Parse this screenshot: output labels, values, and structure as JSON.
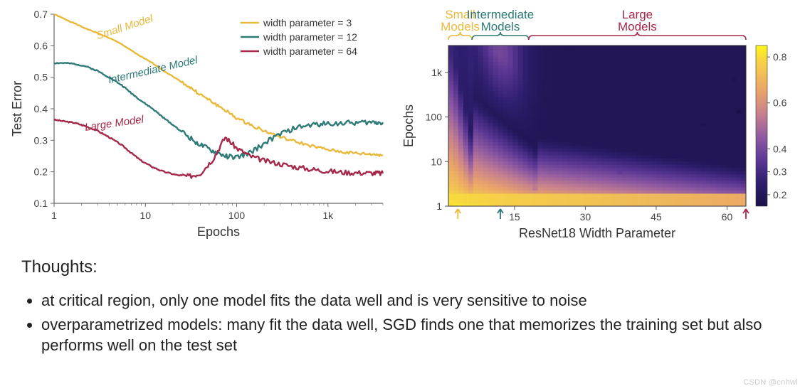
{
  "line_chart": {
    "type": "line",
    "title": null,
    "xlabel": "Epochs",
    "ylabel": "Test Error",
    "label_fontsize": 18,
    "tick_fontsize": 14,
    "xscale": "log",
    "xlim": [
      1,
      4000
    ],
    "ylim": [
      0.1,
      0.7
    ],
    "yticks": [
      0.1,
      0.2,
      0.3,
      0.4,
      0.5,
      0.6,
      0.7
    ],
    "xticks": [
      1,
      10,
      100,
      1000
    ],
    "xtick_labels": [
      "1",
      "10",
      "100",
      "1k"
    ],
    "background_color": "#ffffff",
    "axis_color": "#666666",
    "legend": {
      "position": "upper-right",
      "items": [
        {
          "label": "width parameter = 3",
          "color": "#e8b93b"
        },
        {
          "label": "width parameter = 12",
          "color": "#2d7a77"
        },
        {
          "label": "width parameter = 64",
          "color": "#a5284a"
        }
      ]
    },
    "curve_annotations": [
      {
        "text": "Small Model",
        "color": "#e8b93b",
        "x": 3,
        "y": 0.62,
        "rotation": -18
      },
      {
        "text": "Intermediate Model",
        "color": "#2d7a77",
        "x": 4,
        "y": 0.48,
        "rotation": -13
      },
      {
        "text": "Large Model",
        "color": "#a5284a",
        "x": 2.2,
        "y": 0.33,
        "rotation": -8
      }
    ],
    "series": [
      {
        "name": "width=3",
        "color": "#e8b93b",
        "line_width": 2.4,
        "x": [
          1,
          1.3,
          1.7,
          2.2,
          3,
          4,
          5.5,
          7,
          9,
          12,
          16,
          22,
          30,
          40,
          55,
          75,
          100,
          140,
          200,
          300,
          450,
          700,
          1000,
          1500,
          2200,
          3200,
          4000
        ],
        "y": [
          0.7,
          0.685,
          0.67,
          0.655,
          0.64,
          0.625,
          0.605,
          0.585,
          0.565,
          0.545,
          0.52,
          0.495,
          0.47,
          0.445,
          0.42,
          0.395,
          0.37,
          0.35,
          0.33,
          0.31,
          0.295,
          0.28,
          0.27,
          0.262,
          0.258,
          0.255,
          0.253
        ]
      },
      {
        "name": "width=12",
        "color": "#2d7a77",
        "line_width": 2.4,
        "x": [
          1,
          1.3,
          1.7,
          2.2,
          3,
          4,
          5.5,
          7,
          9,
          12,
          16,
          22,
          30,
          40,
          55,
          75,
          100,
          140,
          200,
          300,
          450,
          700,
          1000,
          1500,
          2200,
          3200,
          4000
        ],
        "y": [
          0.545,
          0.545,
          0.542,
          0.535,
          0.52,
          0.5,
          0.475,
          0.45,
          0.425,
          0.4,
          0.37,
          0.34,
          0.31,
          0.285,
          0.265,
          0.25,
          0.245,
          0.26,
          0.29,
          0.32,
          0.34,
          0.35,
          0.353,
          0.355,
          0.356,
          0.357,
          0.357
        ]
      },
      {
        "name": "width=64",
        "color": "#a5284a",
        "line_width": 2.4,
        "x": [
          1,
          1.3,
          1.7,
          2.2,
          3,
          4,
          5.5,
          7,
          9,
          12,
          16,
          22,
          30,
          40,
          55,
          75,
          100,
          140,
          200,
          300,
          450,
          700,
          1000,
          1500,
          2200,
          3200,
          4000
        ],
        "y": [
          0.365,
          0.36,
          0.355,
          0.345,
          0.33,
          0.31,
          0.285,
          0.26,
          0.235,
          0.215,
          0.2,
          0.19,
          0.185,
          0.195,
          0.24,
          0.31,
          0.275,
          0.25,
          0.235,
          0.225,
          0.215,
          0.207,
          0.202,
          0.198,
          0.197,
          0.196,
          0.195
        ]
      }
    ],
    "noise_amplitude_by_series": {
      "width=3": 0.006,
      "width=12": 0.01,
      "width=64": 0.01
    }
  },
  "heatmap": {
    "type": "heatmap",
    "xlabel": "ResNet18 Width Parameter",
    "ylabel": "Epochs",
    "label_fontsize": 17,
    "tick_fontsize": 14,
    "xlim": [
      1,
      64
    ],
    "yscale": "log",
    "ylim": [
      1,
      4000
    ],
    "xticks": [
      15,
      30,
      45,
      60
    ],
    "yticks": [
      1,
      10,
      100,
      1000
    ],
    "ytick_labels": [
      "1",
      "10",
      "100",
      "1k"
    ],
    "colorbar": {
      "ticks": [
        0.2,
        0.3,
        0.4,
        0.6,
        0.8
      ],
      "vmin": 0.15,
      "vmax": 0.85,
      "stops": [
        {
          "v": 0.15,
          "color": "#1b1147"
        },
        {
          "v": 0.25,
          "color": "#2e1e6e"
        },
        {
          "v": 0.35,
          "color": "#5b3794"
        },
        {
          "v": 0.45,
          "color": "#8f5aa1"
        },
        {
          "v": 0.55,
          "color": "#c57f8f"
        },
        {
          "v": 0.65,
          "color": "#e9a36a"
        },
        {
          "v": 0.78,
          "color": "#f6d246"
        },
        {
          "v": 0.85,
          "color": "#fef71c"
        }
      ]
    },
    "brackets": [
      {
        "label_line1": "Small",
        "label_line2": "Models",
        "color": "#e8b93b",
        "x_from": 1,
        "x_to": 6
      },
      {
        "label_line1": "Intermediate",
        "label_line2": "Models",
        "color": "#2d7a77",
        "x_from": 6,
        "x_to": 18
      },
      {
        "label_line1": "Large",
        "label_line2": "Models",
        "color": "#a5284a",
        "x_from": 18,
        "x_to": 64
      }
    ],
    "arrows_below": [
      {
        "x": 3,
        "color": "#e8b93b"
      },
      {
        "x": 12,
        "color": "#2d7a77"
      },
      {
        "x": 64,
        "color": "#a5284a"
      }
    ],
    "value_model": {
      "comment": "heatmap cell value ≈ test-error surface; valley along epoch_min(w) curve; high at bottom-left",
      "base_high": 0.82,
      "base_low": 0.17,
      "ridge_width_param": 12,
      "valley_epoch_fn": "piecewise: drops from ~3000 at w=1 to ~30 at w=20, then slowly to ~5 at w=64"
    }
  },
  "thoughts": {
    "heading": "Thoughts:",
    "bullets": [
      "at critical region, only one model fits the data well and is very sensitive to noise",
      "overparametrized models: many fit the data well, SGD finds one that memorizes the training set but also performs well on the test set"
    ]
  },
  "watermark": "CSDN @cnhwl",
  "colors": {
    "small": "#e8b93b",
    "inter": "#2d7a77",
    "large": "#a5284a",
    "axis": "#666666",
    "text": "#333333"
  }
}
